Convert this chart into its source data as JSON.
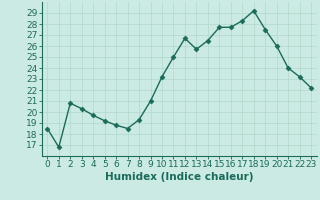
{
  "x": [
    0,
    1,
    2,
    3,
    4,
    5,
    6,
    7,
    8,
    9,
    10,
    11,
    12,
    13,
    14,
    15,
    16,
    17,
    18,
    19,
    20,
    21,
    22,
    23
  ],
  "y": [
    18.5,
    16.8,
    20.8,
    20.3,
    19.7,
    19.2,
    18.8,
    18.5,
    19.3,
    21.0,
    23.2,
    25.0,
    26.7,
    25.7,
    26.5,
    27.7,
    27.7,
    28.3,
    29.2,
    27.5,
    26.0,
    24.0,
    23.2,
    22.2
  ],
  "line_color": "#1a6b5a",
  "marker": "D",
  "marker_size": 2.5,
  "bg_color": "#cceae4",
  "grid_color": "#b0d8cc",
  "xlabel": "Humidex (Indice chaleur)",
  "ylim": [
    16,
    30
  ],
  "xlim": [
    -0.5,
    23.5
  ],
  "yticks": [
    17,
    18,
    19,
    20,
    21,
    22,
    23,
    24,
    25,
    26,
    27,
    28,
    29
  ],
  "xtick_labels": [
    "0",
    "1",
    "2",
    "3",
    "4",
    "5",
    "6",
    "7",
    "8",
    "9",
    "10",
    "11",
    "12",
    "13",
    "14",
    "15",
    "16",
    "17",
    "18",
    "19",
    "20",
    "21",
    "22",
    "23"
  ],
  "label_fontsize": 7.5,
  "tick_fontsize": 6.5
}
